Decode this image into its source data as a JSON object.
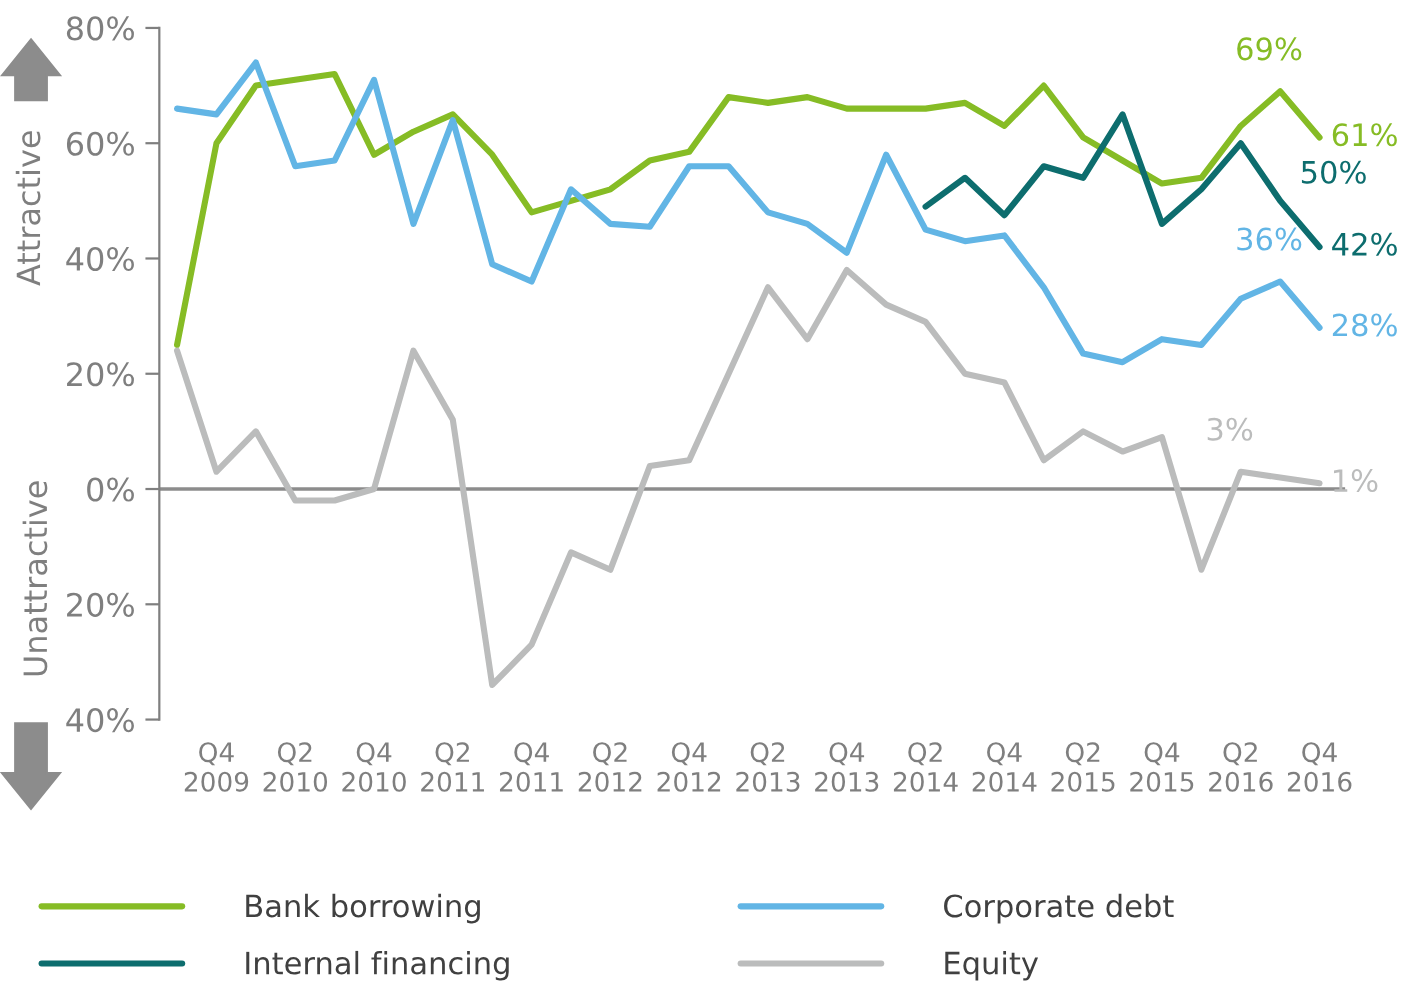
{
  "chart_data": {
    "type": "line",
    "ylabel": "Attractive",
    "annotations": [
      "Unattractive"
    ],
    "categories": [
      null,
      "Q4\n2009",
      null,
      "Q2\n2010",
      null,
      "Q4\n2010",
      null,
      "Q2\n2011",
      null,
      "Q4\n2011",
      null,
      "Q2\n2012",
      null,
      "Q4\n2012",
      null,
      "Q2\n2013",
      null,
      "Q4\n2013",
      null,
      "Q2\n2014",
      null,
      "Q4\n2014",
      null,
      "Q2\n2015",
      null,
      "Q4\n2015",
      null,
      "Q2\n2016",
      null,
      "Q4\n2016"
    ],
    "series": [
      {
        "name": "Bank borrowing",
        "color": "#86bc25",
        "values": [
          25,
          60,
          70,
          71,
          72,
          58,
          62,
          65,
          58,
          48,
          50,
          52,
          57,
          58.5,
          68,
          67,
          68,
          66,
          66,
          66,
          67,
          63,
          70,
          61,
          57,
          53,
          54,
          63,
          69,
          61
        ],
        "value_labels": [
          null,
          null,
          null,
          null,
          null,
          null,
          null,
          null,
          null,
          null,
          null,
          null,
          null,
          null,
          null,
          null,
          null,
          null,
          null,
          null,
          null,
          null,
          null,
          null,
          null,
          null,
          null,
          null,
          "69%",
          "61%"
        ]
      },
      {
        "name": "Corporate debt",
        "color": "#62b5e5",
        "values": [
          66,
          65,
          74,
          56,
          57,
          71,
          46,
          64,
          39,
          36,
          52,
          46,
          45.5,
          56,
          56,
          48,
          46,
          41,
          58,
          45,
          43,
          44,
          35,
          23.5,
          22,
          26,
          25,
          33,
          36,
          28
        ],
        "value_labels": [
          null,
          null,
          null,
          null,
          null,
          null,
          null,
          null,
          null,
          null,
          null,
          null,
          null,
          null,
          null,
          null,
          null,
          null,
          null,
          null,
          null,
          null,
          null,
          null,
          null,
          null,
          null,
          null,
          "36%",
          "28%"
        ]
      },
      {
        "name": "Internal financing",
        "color": "#0d6d6e",
        "values": [
          null,
          null,
          null,
          null,
          null,
          null,
          null,
          null,
          null,
          null,
          null,
          null,
          null,
          null,
          null,
          null,
          null,
          null,
          null,
          49,
          54,
          47.5,
          56,
          54,
          65,
          46,
          52,
          60,
          50,
          42
        ],
        "value_labels": [
          null,
          null,
          null,
          null,
          null,
          null,
          null,
          null,
          null,
          null,
          null,
          null,
          null,
          null,
          null,
          null,
          null,
          null,
          null,
          null,
          null,
          null,
          null,
          null,
          null,
          null,
          null,
          null,
          "50%",
          "42%"
        ]
      },
      {
        "name": "Equity",
        "color": "#bbbcbc",
        "values": [
          24,
          3,
          10,
          -2,
          -2,
          0,
          24,
          12,
          -34,
          -27,
          -11,
          -14,
          4,
          5,
          20,
          35,
          26,
          38,
          32,
          29,
          20,
          18.5,
          5,
          10,
          6.5,
          9,
          -14,
          3,
          2,
          1
        ],
        "value_labels": [
          null,
          null,
          null,
          null,
          null,
          null,
          null,
          null,
          null,
          null,
          null,
          null,
          null,
          null,
          null,
          null,
          null,
          null,
          null,
          null,
          null,
          null,
          null,
          null,
          null,
          null,
          null,
          "3%",
          null,
          "1%"
        ]
      }
    ],
    "ylim": [
      -40,
      80
    ],
    "yticks": [
      {
        "value": -40,
        "label": "40%"
      },
      {
        "value": -20,
        "label": "20%"
      },
      {
        "value": 0,
        "label": "0%"
      },
      {
        "value": 20,
        "label": "20%"
      },
      {
        "value": 40,
        "label": "40%"
      },
      {
        "value": 60,
        "label": "60%"
      },
      {
        "value": 80,
        "label": "80%"
      }
    ],
    "ref_lines": [
      {
        "axis": "y",
        "value": 0,
        "color": "#8c8c8c"
      }
    ],
    "legend": "bottom",
    "grid": false
  }
}
